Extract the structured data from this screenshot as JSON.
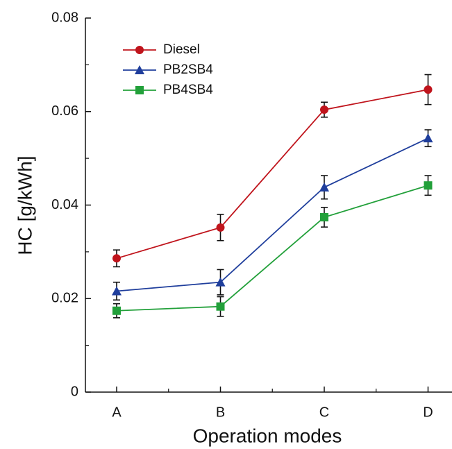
{
  "chart_data": {
    "type": "line",
    "x_label": "Operation modes",
    "y_label": "HC [g/kWh]",
    "categories": [
      "A",
      "B",
      "C",
      "D"
    ],
    "ylim": [
      0,
      0.08
    ],
    "yticks": [
      0,
      0.02,
      0.04,
      0.06,
      0.08
    ],
    "legend": "upper left",
    "series": [
      {
        "name": "Diesel",
        "color": "#c0141c",
        "marker": "circle",
        "values": [
          0.0286,
          0.0352,
          0.0604,
          0.0647
        ],
        "errors": [
          0.0018,
          0.0028,
          0.0016,
          0.0032
        ]
      },
      {
        "name": "PB2SB4",
        "color": "#1f3e9c",
        "marker": "triangle",
        "values": [
          0.0216,
          0.0235,
          0.0438,
          0.0543
        ],
        "errors": [
          0.0019,
          0.0027,
          0.0025,
          0.0018
        ]
      },
      {
        "name": "PB4SB4",
        "color": "#22a03a",
        "marker": "square",
        "values": [
          0.0174,
          0.0183,
          0.0374,
          0.0442
        ],
        "errors": [
          0.0015,
          0.0021,
          0.0021,
          0.0021
        ]
      }
    ]
  }
}
